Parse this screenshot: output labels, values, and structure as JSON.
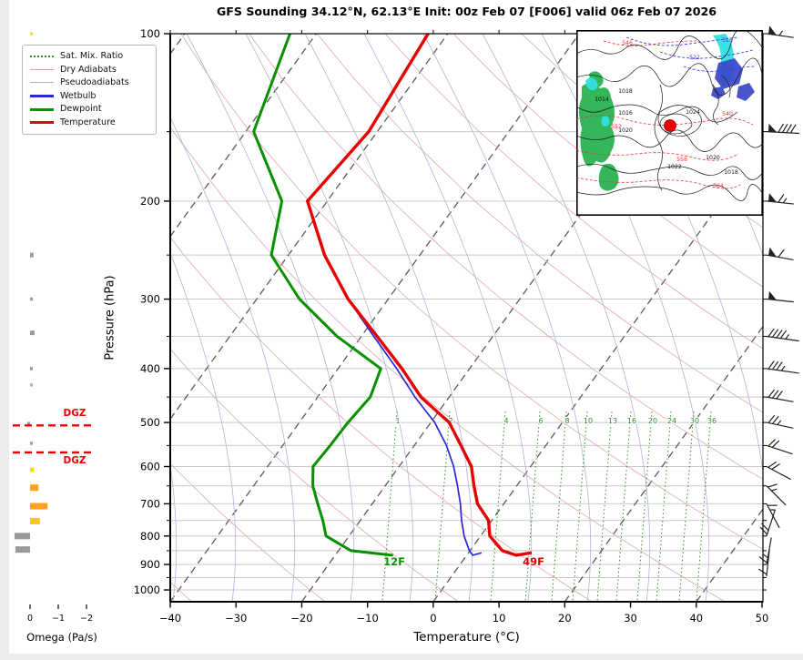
{
  "title": "GFS Sounding 34.12°N, 62.13°E Init: 00z Feb 07 [F006] valid 06z Feb 07 2026",
  "axes": {
    "pressure": {
      "label": "Pressure (hPa)",
      "ticks": [
        100,
        200,
        300,
        400,
        500,
        600,
        700,
        800,
        900,
        1000
      ],
      "minor_ticks": [
        150,
        250,
        350,
        450,
        550,
        650,
        750,
        850,
        950
      ],
      "range": [
        100,
        1050
      ]
    },
    "temperature": {
      "label": "Temperature (°C)",
      "ticks": [
        {
          "v": -40,
          "label": "−40"
        },
        {
          "v": -30,
          "label": "−30"
        },
        {
          "v": -20,
          "label": "−20"
        },
        {
          "v": -10,
          "label": "−10"
        },
        {
          "v": 0,
          "label": "0"
        },
        {
          "v": 10,
          "label": "10"
        },
        {
          "v": 20,
          "label": "20"
        },
        {
          "v": 30,
          "label": "30"
        },
        {
          "v": 40,
          "label": "40"
        },
        {
          "v": 50,
          "label": "50"
        }
      ],
      "range": [
        -40,
        50
      ]
    },
    "omega": {
      "label": "Omega (Pa/s)",
      "ticks": [
        {
          "v": 0,
          "label": "0"
        },
        {
          "v": -1,
          "label": "−1"
        },
        {
          "v": -2,
          "label": "−2"
        }
      ]
    }
  },
  "legend": {
    "items": [
      {
        "label": "Sat. Mix. Ratio",
        "color": "#2e8b2e",
        "style": "dotted"
      },
      {
        "label": "Dry Adiabats",
        "color": "#d9a0a0",
        "style": "thin"
      },
      {
        "label": "Pseudoadiabats",
        "color": "#a9a9da",
        "style": "thin"
      },
      {
        "label": "Wetbulb",
        "color": "#2828d8",
        "style": "thick"
      },
      {
        "label": "Dewpoint",
        "color": "#089000",
        "style": "thick"
      },
      {
        "label": "Temperature",
        "color": "#e60000",
        "style": "thick"
      }
    ]
  },
  "annotations": {
    "surface_temp_f": "49F",
    "surface_dewpoint_f": "12F",
    "dgz_label": "DGZ",
    "dgz_pressures": [
      506,
      566
    ]
  },
  "mixing_ratio_labels": [
    "1",
    "2",
    "4",
    "6",
    "8",
    "10",
    "13",
    "16",
    "20",
    "24",
    "30",
    "36"
  ],
  "colors": {
    "temperature": "#e60000",
    "dewpoint": "#089000",
    "wetbulb": "#2828d8",
    "dry_adiabat": "#dda8a8",
    "pseudoadiabat": "#b1b1de",
    "sat_mix_ratio": "#2e8b2e",
    "isotherm": "#5a5a5a",
    "isobar": "#c9c9c9",
    "dgz": "#ee0000",
    "omega_up_weak": "#f5e000",
    "omega_up_strong": "#ffa21f",
    "omega_down": "#9a9a9a"
  },
  "chart_data": {
    "type": "line",
    "title": "GFS Sounding skew-T profile",
    "xlabel": "Temperature (°C)",
    "ylabel": "Pressure (hPa)",
    "x_range": [
      -40,
      50
    ],
    "pressure_range": [
      100,
      1050
    ],
    "skew": true,
    "pressure_levels": [
      100,
      150,
      200,
      250,
      300,
      350,
      400,
      450,
      500,
      550,
      600,
      650,
      700,
      750,
      800,
      850,
      866,
      858
    ],
    "series": [
      {
        "name": "Temperature",
        "color": "#e60000",
        "width": 3.4,
        "values": [
          -63.0,
          -61.3,
          -63.0,
          -54.5,
          -46.1,
          -37.6,
          -30.3,
          -24.3,
          -17.2,
          -12.9,
          -9.0,
          -6.5,
          -4.0,
          -0.5,
          1.4,
          4.9,
          7.5,
          9.4
        ]
      },
      {
        "name": "Dewpoint",
        "color": "#089000",
        "width": 3.0,
        "values": [
          -84.0,
          -78.8,
          -66.9,
          -62.6,
          -53.5,
          -43.7,
          -33.5,
          -32.0,
          -32.6,
          -32.8,
          -33.1,
          -31.0,
          -28.3,
          -25.7,
          -23.5,
          -18.1,
          -11.4,
          null
        ]
      },
      {
        "name": "Wetbulb",
        "color": "#2828d8",
        "width": 1.7,
        "values": [
          null,
          null,
          null,
          null,
          -46.1,
          -38.1,
          -31.1,
          -25.2,
          -19.4,
          -15.1,
          -11.7,
          -9.0,
          -6.6,
          -4.6,
          -2.5,
          -0.1,
          0.9,
          1.9
        ]
      }
    ],
    "omega_bars": [
      {
        "p": 100,
        "v": -0.1,
        "c": "#f5e000"
      },
      {
        "p": 250,
        "v": -0.12,
        "c": "#9a9a9a"
      },
      {
        "p": 300,
        "v": -0.1,
        "c": "#9a9a9a"
      },
      {
        "p": 345,
        "v": -0.16,
        "c": "#9a9a9a"
      },
      {
        "p": 400,
        "v": -0.1,
        "c": "#9a9a9a"
      },
      {
        "p": 428,
        "v": -0.08,
        "c": "#b5b5b5"
      },
      {
        "p": 502,
        "v": 0.06,
        "c": "#9a9a9a"
      },
      {
        "p": 545,
        "v": -0.08,
        "c": "#9a9a9a"
      },
      {
        "p": 608,
        "v": -0.14,
        "c": "#f5e000"
      },
      {
        "p": 655,
        "v": -0.3,
        "c": "#ffa21f"
      },
      {
        "p": 707,
        "v": -0.62,
        "c": "#ffa21f"
      },
      {
        "p": 752,
        "v": -0.35,
        "c": "#fdc02f"
      },
      {
        "p": 800,
        "v": 0.55,
        "c": "#9a9a9a"
      },
      {
        "p": 846,
        "v": 0.52,
        "c": "#9a9a9a"
      }
    ],
    "wind_barbs": [
      {
        "p": 100,
        "rot": 8,
        "pennants": 1,
        "full": 0,
        "half": 1
      },
      {
        "p": 150,
        "rot": 3,
        "pennants": 1,
        "full": 4,
        "half": 0
      },
      {
        "p": 200,
        "rot": 6,
        "pennants": 1,
        "full": 1,
        "half": 1
      },
      {
        "p": 250,
        "rot": 10,
        "pennants": 1,
        "full": 1,
        "half": 0
      },
      {
        "p": 300,
        "rot": 6,
        "pennants": 1,
        "full": 0,
        "half": 0
      },
      {
        "p": 350,
        "rot": 8,
        "pennants": 0,
        "full": 4,
        "half": 1
      },
      {
        "p": 400,
        "rot": 8,
        "pennants": 0,
        "full": 3,
        "half": 1
      },
      {
        "p": 450,
        "rot": 10,
        "pennants": 0,
        "full": 3,
        "half": 0
      },
      {
        "p": 500,
        "rot": 12,
        "pennants": 0,
        "full": 2,
        "half": 1
      },
      {
        "p": 550,
        "rot": 18,
        "pennants": 0,
        "full": 2,
        "half": 0
      },
      {
        "p": 600,
        "rot": 28,
        "pennants": 0,
        "full": 2,
        "half": 0
      },
      {
        "p": 650,
        "rot": 45,
        "pennants": 0,
        "full": 1,
        "half": 1
      },
      {
        "p": 700,
        "rot": 62,
        "pennants": 0,
        "full": 1,
        "half": 1
      },
      {
        "p": 800,
        "rot": -72,
        "pennants": 0,
        "full": 2,
        "half": 0
      },
      {
        "p": 900,
        "rot": -80,
        "pennants": 0,
        "full": 1,
        "half": 1
      },
      {
        "p": 945,
        "rot": -84,
        "pennants": 0,
        "full": 1,
        "half": 0
      }
    ]
  },
  "inset_map": {
    "isobar_labels": [
      "1014",
      "1016",
      "1018",
      "1020",
      "1022",
      "1024",
      "1020",
      "1018"
    ],
    "red_labels": [
      "546",
      "552",
      "558",
      "564",
      "540"
    ],
    "blue_labels": [
      "516",
      "522"
    ]
  }
}
